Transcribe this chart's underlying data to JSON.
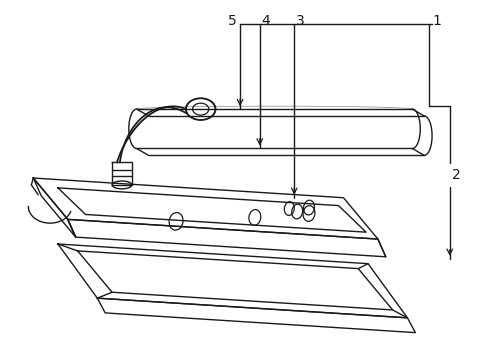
{
  "bg_color": "#ffffff",
  "line_color": "#1a1a1a",
  "label_color": "#000000",
  "figsize": [
    4.9,
    3.6
  ],
  "dpi": 100,
  "lw": 1.0
}
